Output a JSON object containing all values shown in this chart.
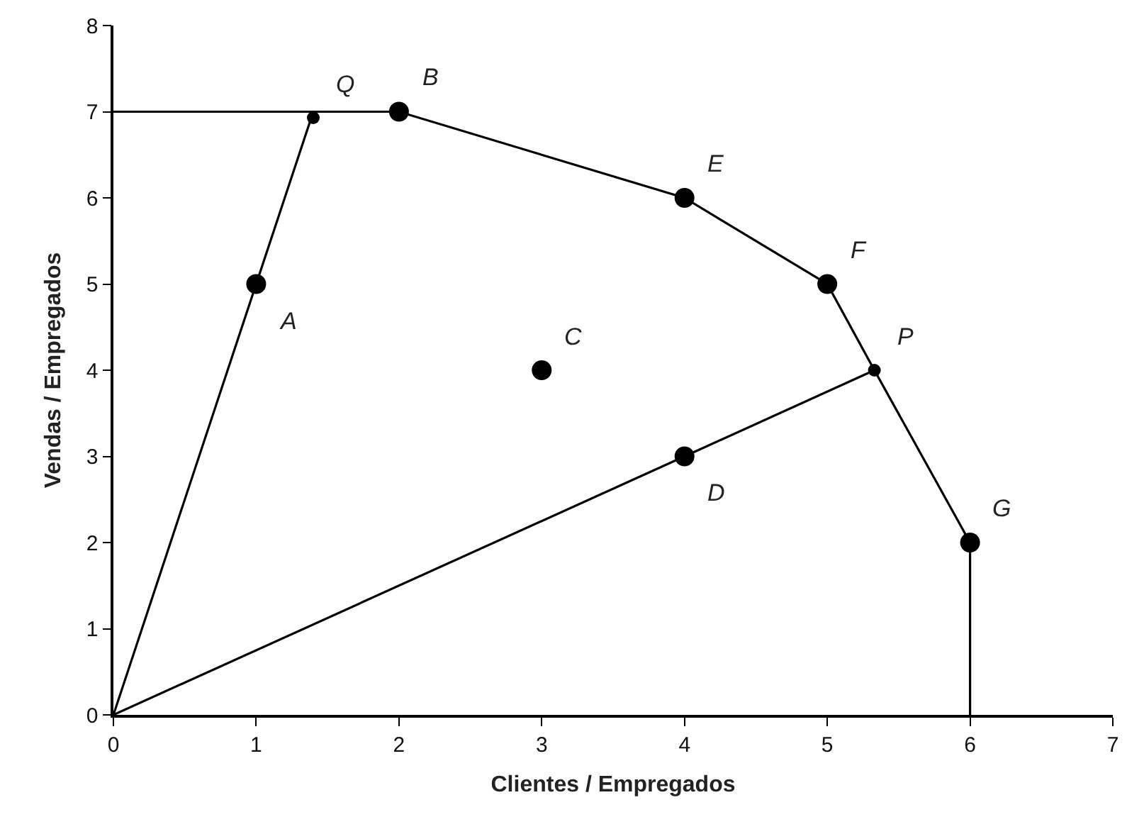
{
  "chart_data": {
    "type": "scatter",
    "xlabel": "Clientes / Empregados",
    "ylabel": "Vendas / Empregados",
    "xlim": [
      0,
      7
    ],
    "xticks": [
      0,
      1,
      2,
      3,
      4,
      5,
      6,
      7
    ],
    "ylim": [
      0,
      8
    ],
    "yticks": [
      0,
      1,
      2,
      3,
      4,
      5,
      6,
      7,
      8
    ],
    "grid": false,
    "series": [
      {
        "type": "line",
        "color": "#000000",
        "marker": "none",
        "x": [
          0,
          2,
          4,
          5,
          5.33,
          6,
          6
        ],
        "values": [
          7,
          7,
          6,
          5,
          4,
          2,
          0
        ]
      },
      {
        "type": "line",
        "color": "#000000",
        "marker": "none",
        "x": [
          0,
          1,
          1.4
        ],
        "values": [
          0,
          5,
          7
        ]
      },
      {
        "type": "line",
        "color": "#000000",
        "marker": "none",
        "x": [
          0,
          4,
          5.33
        ],
        "values": [
          0,
          3,
          4
        ]
      },
      {
        "type": "scatter",
        "color": "#000000",
        "marker": "circle",
        "x": [
          1,
          2,
          3,
          4,
          4,
          5,
          6
        ],
        "values": [
          5,
          7,
          4,
          6,
          3,
          5,
          2
        ]
      },
      {
        "type": "scatter",
        "color": "#000000",
        "marker": "circle",
        "x": [
          1.4,
          5.33
        ],
        "values": [
          6.93,
          4
        ]
      }
    ],
    "annotations": [
      {
        "text": "Q",
        "x": 1.4,
        "y": 6.93
      },
      {
        "text": "B",
        "x": 2,
        "y": 7
      },
      {
        "text": "A",
        "x": 1,
        "y": 5
      },
      {
        "text": "C",
        "x": 3,
        "y": 4
      },
      {
        "text": "E",
        "x": 4,
        "y": 6
      },
      {
        "text": "F",
        "x": 5,
        "y": 5
      },
      {
        "text": "P",
        "x": 5.33,
        "y": 4
      },
      {
        "text": "D",
        "x": 4,
        "y": 3
      },
      {
        "text": "G",
        "x": 6,
        "y": 2
      }
    ]
  }
}
